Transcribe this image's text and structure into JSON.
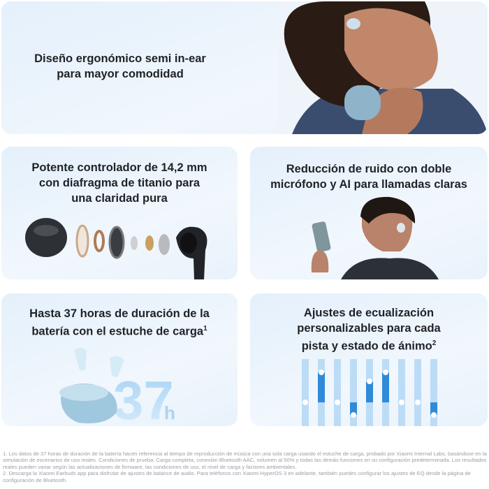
{
  "cards": [
    {
      "lines": [
        "Diseño ergonómico semi in-ear",
        "para mayor comodidad"
      ]
    },
    {
      "lines": [
        "Potente controlador de 14,2 mm",
        "con diafragma de titanio para",
        "una claridad pura"
      ]
    },
    {
      "lines": [
        "Reducción de ruido con doble",
        "micrófono y AI para llamadas claras"
      ]
    },
    {
      "lines": [
        "Hasta 37 horas de duración de la",
        "batería con el estuche de carga"
      ],
      "sup": "1",
      "graphic": "37",
      "graphic_unit": "h"
    },
    {
      "lines": [
        "Ajustes de ecualización",
        "personalizables para cada",
        "pista y estado de ánimo"
      ],
      "sup": "2"
    }
  ],
  "footnotes": [
    "1. Los datos de 37 horas de duración de la batería hacen referencia al tiempo de reproducción de música con una sola carga usando el estuche de carga, probado por Xiaomi Internal Labs, basándose en la simulación de escenarios de uso reales. Condiciones de prueba: Carga completa, conexión Bluetooth AAC, volumen al 50% y todas las demás funciones en su configuración predeterminada. Los resultados reales pueden variar según las actualizaciones de firmware, las condiciones de uso, el nivel de carga y factores ambientales.",
    "2. Descarga la Xiaomi Earbuds app para disfrutar de ajustes de balance de audio. Para teléfonos con Xiaomi HyperOS 3 en adelante, también puedes configurar los ajustes de EQ desde la página de configuración de Bluetooth."
  ]
}
